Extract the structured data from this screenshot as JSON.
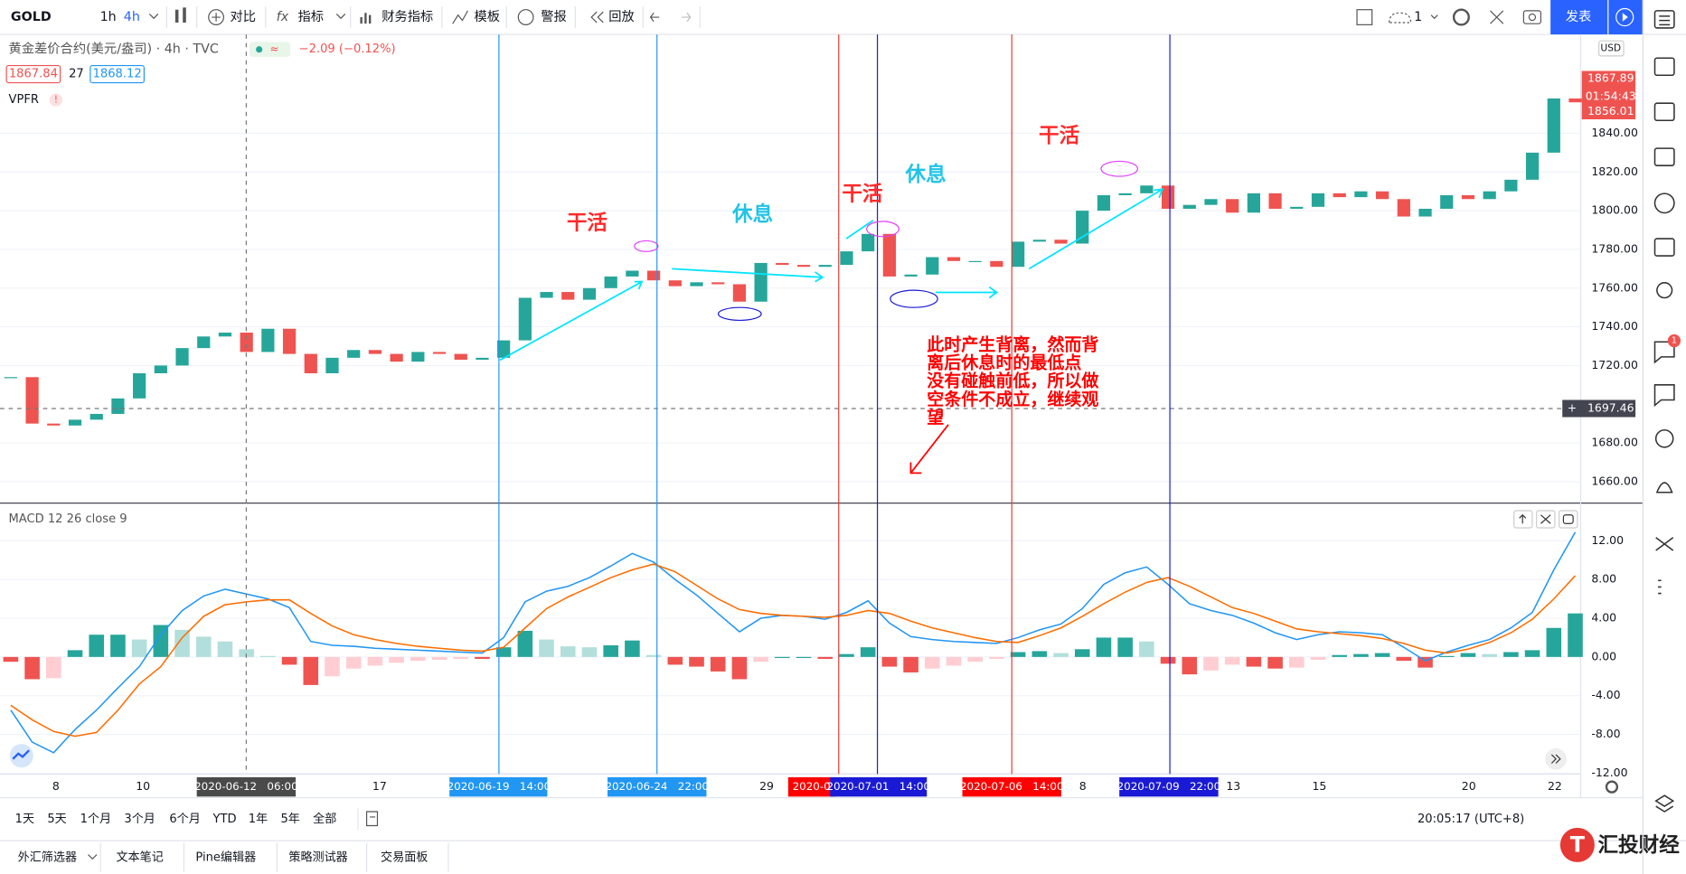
{
  "toolbar": {
    "symbol": "GOLD",
    "intervals": [
      "1h",
      "4h"
    ],
    "items": [
      "对比",
      "指标",
      "财务指标",
      "模板",
      "警报",
      "回放"
    ],
    "layout_count": "1",
    "publish": "发表"
  },
  "legend": {
    "title": "黄金差价合约(美元/盎司) · 4h · TVC",
    "change": "−2.09 (−0.12%)",
    "bid": "1867.84",
    "spread": "27",
    "ask": "1868.12",
    "indicator": "VPFR",
    "macd": "MACD 12 26 close 9"
  },
  "chart_data": [
    {
      "type": "candlestick",
      "currency": "USD",
      "values": [
        1714,
        1690,
        1689,
        1692,
        1695,
        1703,
        1716,
        1720,
        1729,
        1735,
        1737,
        1727,
        1739,
        1726,
        1716,
        1724,
        1728,
        1726,
        1722,
        1727,
        1726,
        1723,
        1724,
        1733,
        1755,
        1758,
        1754,
        1760,
        1766,
        1769,
        1764,
        1761,
        1763,
        1762,
        1753,
        1773,
        1772,
        1771,
        1772,
        1779,
        1788,
        1766,
        1767,
        1776,
        1774,
        1774,
        1771,
        1784,
        1785,
        1783,
        1800,
        1808,
        1809,
        1813,
        1801,
        1803,
        1806,
        1799,
        1809,
        1801,
        1802,
        1809,
        1807,
        1810,
        1806,
        1797,
        1801,
        1808,
        1806,
        1810,
        1816,
        1830,
        1858,
        1856
      ],
      "colors": {
        "up": "#26a69a",
        "down": "#ef5350"
      },
      "ylim": [
        1648.9,
        1891.1
      ],
      "yticks": [
        {
          "value": 1660,
          "label": "1660.00"
        },
        {
          "value": 1680,
          "label": "1680.00"
        },
        {
          "value": 1720,
          "label": "1720.00"
        },
        {
          "value": 1740,
          "label": "1740.00"
        },
        {
          "value": 1760,
          "label": "1760.00"
        },
        {
          "value": 1780,
          "label": "1780.00"
        },
        {
          "value": 1800,
          "label": "1800.00"
        },
        {
          "value": 1820,
          "label": "1820.00"
        },
        {
          "value": 1840,
          "label": "1840.00"
        }
      ],
      "axis_labels": [
        "1867.89",
        "01:54:43",
        "1856.01",
        "1697.46"
      ]
    },
    {
      "type": "macd",
      "macd": {
        "color": "#2196f3",
        "values": [
          -5.5,
          -8.8,
          -9.9,
          -7.5,
          -5.5,
          -3.2,
          -1,
          2.3,
          4.8,
          6.3,
          7,
          6.5,
          6,
          5.1,
          1.6,
          1.2,
          1.1,
          0.9,
          0.8,
          0.7,
          0.6,
          0.5,
          0.4,
          2,
          5.7,
          6.8,
          7.3,
          8.2,
          9.4,
          10.7,
          9.8,
          8,
          6.4,
          4.5,
          2.6,
          4,
          4.3,
          4.2,
          3.9,
          4.6,
          5.8,
          3.5,
          2.1,
          1.8,
          1.6,
          1.5,
          1.4,
          2,
          2.8,
          3.4,
          5,
          7.5,
          8.7,
          9.3,
          7.5,
          5.5,
          4.8,
          4.3,
          3.5,
          2.5,
          1.8,
          2.3,
          2.6,
          2.5,
          2.3,
          1,
          -0.4,
          0.5,
          1.2,
          1.8,
          3,
          4.6,
          9,
          12.9
        ]
      },
      "signal": {
        "color": "#ff6d00",
        "values": [
          -5,
          -6.5,
          -7.7,
          -8.2,
          -7.8,
          -5.5,
          -2.8,
          -1,
          2,
          4.2,
          5.4,
          5.7,
          5.9,
          5.9,
          4.5,
          3.2,
          2.3,
          1.8,
          1.4,
          1.1,
          0.9,
          0.7,
          0.6,
          1,
          3,
          5,
          6.2,
          7.2,
          8.2,
          9,
          9.6,
          8.8,
          7.4,
          6,
          4.9,
          4.5,
          4.3,
          4.2,
          4.1,
          4.3,
          4.8,
          4.5,
          3.7,
          3,
          2.5,
          2,
          1.6,
          1.5,
          2.2,
          3,
          4.2,
          5.5,
          6.7,
          7.7,
          8.2,
          7.3,
          6.2,
          5.1,
          4.5,
          3.7,
          2.9,
          2.6,
          2.4,
          2.2,
          1.9,
          1.4,
          0.7,
          0.4,
          0.8,
          1.5,
          2.5,
          3.9,
          6,
          8.4
        ]
      },
      "histogram": {
        "colors": {
          "up_rising": "#26a69a",
          "up_falling": "#b2dfdb",
          "down_falling": "#ef5350",
          "down_rising": "#ffcdd2"
        },
        "values": [
          -0.5,
          -2.3,
          -2.2,
          0.7,
          2.3,
          2.3,
          1.8,
          3.3,
          2.8,
          2.1,
          1.6,
          0.8,
          0.1,
          -0.8,
          -2.9,
          -2,
          -1.2,
          -0.9,
          -0.6,
          -0.4,
          -0.3,
          -0.2,
          -0.2,
          1,
          2.7,
          1.8,
          1.1,
          1,
          1.2,
          1.7,
          0.2,
          -0.8,
          -1,
          -1.5,
          -2.3,
          -0.5,
          0,
          0,
          -0.2,
          0.3,
          1,
          -1,
          -1.6,
          -1.2,
          -0.9,
          -0.5,
          -0.2,
          0.5,
          0.6,
          0.4,
          0.8,
          2,
          2,
          1.6,
          -0.7,
          -1.8,
          -1.4,
          -0.8,
          -1,
          -1.2,
          -1.1,
          -0.3,
          0.2,
          0.3,
          0.4,
          -0.4,
          -1.1,
          0.1,
          0.4,
          0.3,
          0.5,
          0.7,
          3,
          4.5
        ]
      },
      "ylim": [
        -12.1,
        15.9
      ],
      "yticks": [
        {
          "value": -12,
          "label": "-12.00"
        },
        {
          "value": -8,
          "label": "-8.00"
        },
        {
          "value": -4,
          "label": "-4.00"
        },
        {
          "value": 0,
          "label": "0.00"
        },
        {
          "value": 4,
          "label": "4.00"
        },
        {
          "value": 8,
          "label": "8.00"
        },
        {
          "value": 12,
          "label": "12.00"
        }
      ]
    }
  ],
  "time_axis": [
    "8",
    "10",
    "2020-06-12   06:00",
    "17",
    "2020-06-19   14:00",
    "2020-06-24   22:00",
    "29",
    "2020-0",
    "2020-07-01   14:00",
    "2020-07-06   14:00",
    "8",
    "2020-07-09   22:00",
    "13",
    "15",
    "20",
    "22"
  ],
  "annotations": {
    "work": "干活",
    "rest": "休息",
    "note": [
      "此时产生背离，然而背",
      "离后休息时的最低点",
      "没有碰触前低，所以做",
      "空条件不成立，继续观",
      "望"
    ]
  },
  "range_bar": [
    "1天",
    "5天",
    "1个月",
    "3个月",
    "6个月",
    "YTD",
    "1年",
    "5年",
    "全部"
  ],
  "clock": "20:05:17 (UTC+8)",
  "tabs": [
    "外汇筛选器",
    "文本笔记",
    "Pine编辑器",
    "策略测试器",
    "交易面板"
  ],
  "brand": "汇投财经"
}
